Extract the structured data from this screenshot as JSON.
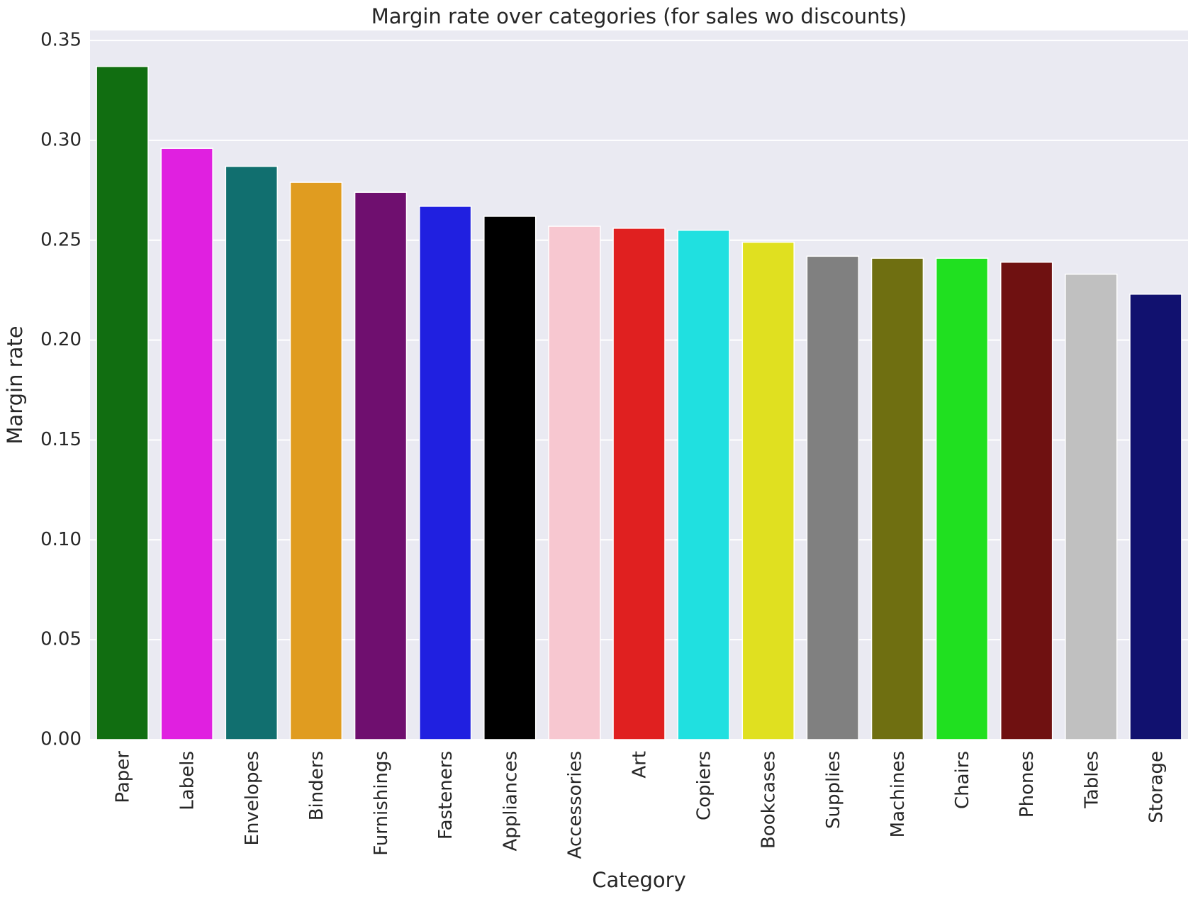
{
  "chart_data": {
    "type": "bar",
    "title": "Margin rate over categories (for sales wo discounts)",
    "xlabel": "Category",
    "ylabel": "Margin rate",
    "ylim": [
      0,
      0.355
    ],
    "yticks": [
      "0.00",
      "0.05",
      "0.10",
      "0.15",
      "0.20",
      "0.25",
      "0.30",
      "0.35"
    ],
    "grid": true,
    "legend": "none",
    "background": "#eaeaf2",
    "categories": [
      "Paper",
      "Labels",
      "Envelopes",
      "Binders",
      "Furnishings",
      "Fasteners",
      "Appliances",
      "Accessories",
      "Art",
      "Copiers",
      "Bookcases",
      "Supplies",
      "Machines",
      "Chairs",
      "Phones",
      "Tables",
      "Storage"
    ],
    "values": [
      0.337,
      0.296,
      0.287,
      0.279,
      0.274,
      0.267,
      0.262,
      0.257,
      0.256,
      0.255,
      0.249,
      0.242,
      0.241,
      0.241,
      0.239,
      0.233,
      0.223
    ],
    "colors": [
      "#116e11",
      "#e020e0",
      "#116f6f",
      "#e09c20",
      "#6f0f6f",
      "#2020e0",
      "#000000",
      "#f7c7d0",
      "#e02020",
      "#20e0e0",
      "#e0e020",
      "#808080",
      "#6f6f11",
      "#20e020",
      "#6f1111",
      "#c0c0c0",
      "#11116f"
    ]
  }
}
